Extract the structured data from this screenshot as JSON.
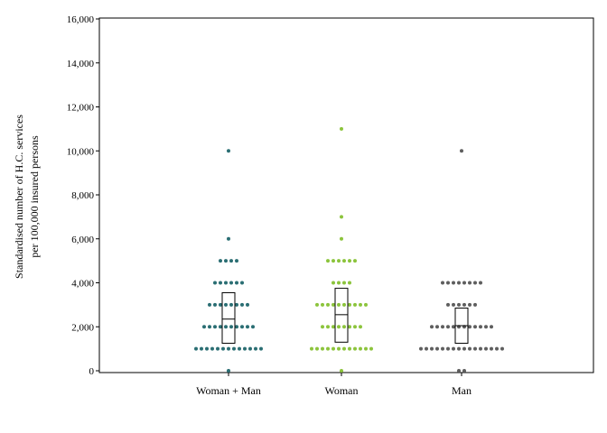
{
  "chart_data": {
    "type": "scatter",
    "subtype": "dot-strip-with-box",
    "ylabel_lines": [
      "Standardised number of H.C. services",
      "per 100,000 insured persons"
    ],
    "ylim": [
      0,
      16000
    ],
    "yticks": [
      0,
      2000,
      4000,
      6000,
      8000,
      10000,
      12000,
      14000,
      16000
    ],
    "ytick_labels": [
      "0",
      "2,000",
      "4,000",
      "6,000",
      "8,000",
      "10,000",
      "12,000",
      "14,000",
      "16,000"
    ],
    "categories": [
      "Woman + Man",
      "Woman",
      "Man"
    ],
    "grid": false,
    "series": [
      {
        "category": "Woman + Man",
        "color": "#2a6e73",
        "points": [
          {
            "y": 0,
            "count": 1
          },
          {
            "y": 1000,
            "count": 13
          },
          {
            "y": 2000,
            "count": 10
          },
          {
            "y": 3000,
            "count": 8
          },
          {
            "y": 4000,
            "count": 6
          },
          {
            "y": 5000,
            "count": 4
          },
          {
            "y": 6000,
            "count": 1
          },
          {
            "y": 10000,
            "count": 1
          }
        ],
        "box": {
          "q1": 1250,
          "median": 2350,
          "q3": 3550
        }
      },
      {
        "category": "Woman",
        "color": "#8cc43c",
        "points": [
          {
            "y": 0,
            "count": 1
          },
          {
            "y": 1000,
            "count": 12
          },
          {
            "y": 2000,
            "count": 8
          },
          {
            "y": 3000,
            "count": 10
          },
          {
            "y": 4000,
            "count": 4
          },
          {
            "y": 5000,
            "count": 6
          },
          {
            "y": 6000,
            "count": 1
          },
          {
            "y": 7000,
            "count": 1
          },
          {
            "y": 11000,
            "count": 1
          }
        ],
        "box": {
          "q1": 1300,
          "median": 2550,
          "q3": 3750
        }
      },
      {
        "category": "Man",
        "color": "#5e5e5e",
        "points": [
          {
            "y": 0,
            "count": 2
          },
          {
            "y": 1000,
            "count": 16
          },
          {
            "y": 2000,
            "count": 12
          },
          {
            "y": 3000,
            "count": 6
          },
          {
            "y": 4000,
            "count": 8
          },
          {
            "y": 10000,
            "count": 1
          }
        ],
        "box": {
          "q1": 1250,
          "median": 2050,
          "q3": 2850
        }
      }
    ]
  }
}
